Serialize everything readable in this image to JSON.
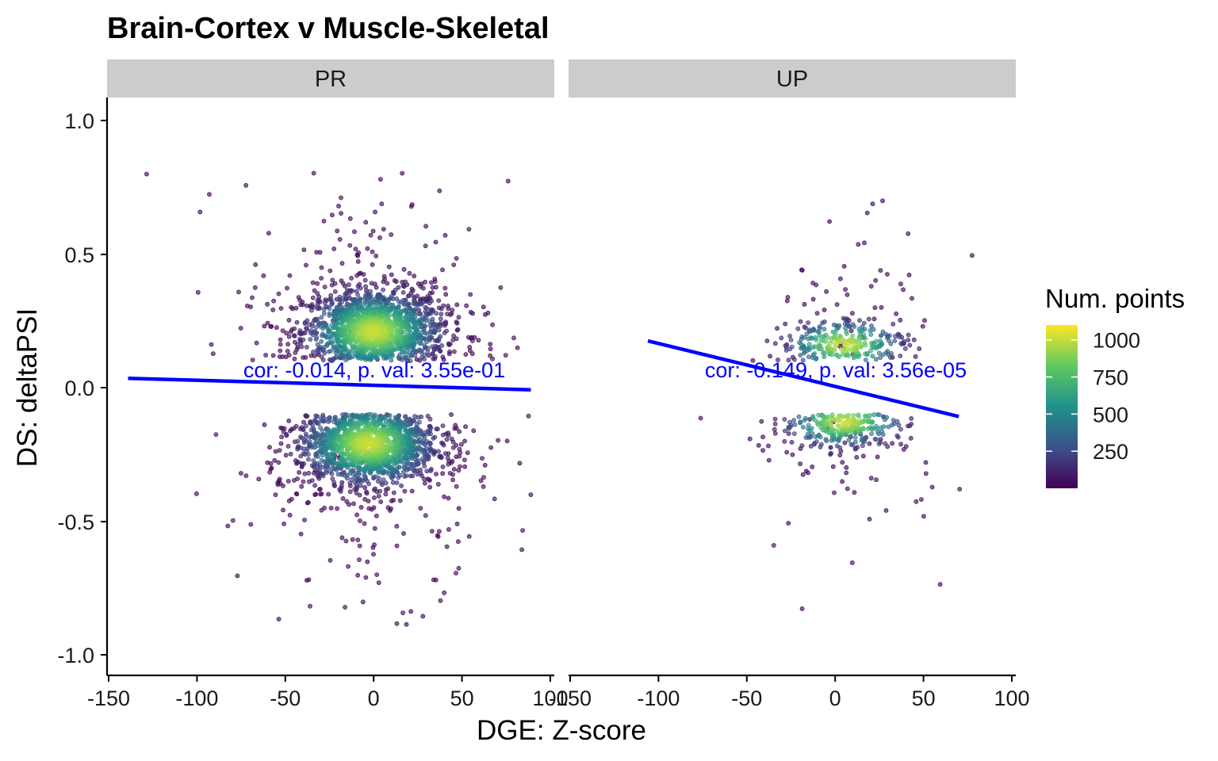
{
  "chart_data": {
    "type": "scatter",
    "title": "Brain-Cortex v Muscle-Skeletal",
    "xlabel": "DGE: Z-score",
    "ylabel": "DS: deltaPSI",
    "xlim": [
      -150,
      100
    ],
    "ylim": [
      -1.05,
      1.1
    ],
    "x_ticks": [
      "-150",
      "-100",
      "-50",
      "0",
      "50",
      "100"
    ],
    "y_ticks": [
      "-1.0",
      "-0.5",
      "0.0",
      "0.5",
      "1.0"
    ],
    "grid": false,
    "legend": {
      "title": "Num. points",
      "position": "right",
      "type": "colorbar",
      "labels": [
        "1000",
        "750",
        "500",
        "250"
      ],
      "values": [
        1000,
        750,
        500,
        250
      ],
      "range": [
        0,
        1100
      ],
      "colors": [
        "#440154",
        "#3b528b",
        "#21918c",
        "#5ec962",
        "#fde725"
      ]
    },
    "facets": [
      {
        "label": "PR",
        "correlation_label": "cor: -0.014, p. val: 3.55e-01",
        "fit_line": {
          "x": [
            -139,
            89
          ],
          "y": [
            0.035,
            -0.008
          ]
        },
        "point_clusters": [
          {
            "center": [
              0,
              0.21
            ],
            "spread": [
              20,
              0.08
            ],
            "y_range": [
              0.1,
              1.0
            ],
            "count": 1400
          },
          {
            "center": [
              -3,
              -0.21
            ],
            "spread": [
              20,
              0.08
            ],
            "y_range": [
              -1.0,
              -0.1
            ],
            "count": 1400
          }
        ],
        "outer_spread": [
          38,
          0.28
        ],
        "outer_count": 420
      },
      {
        "label": "UP",
        "correlation_label": "cor: -0.149, p. val: 3.56e-05",
        "fit_line": {
          "x": [
            -106,
            70
          ],
          "y": [
            0.175,
            -0.108
          ]
        },
        "point_clusters": [
          {
            "center": [
              5,
              0.16
            ],
            "spread": [
              18,
              0.05
            ],
            "y_range": [
              0.1,
              0.8
            ],
            "count": 260
          },
          {
            "center": [
              5,
              -0.13
            ],
            "spread": [
              18,
              0.05
            ],
            "y_range": [
              -0.92,
              -0.1
            ],
            "count": 260
          }
        ],
        "outer_spread": [
          30,
          0.25
        ],
        "outer_count": 110
      }
    ],
    "point_color_scale": "viridis",
    "line_color": "#0000ff"
  }
}
